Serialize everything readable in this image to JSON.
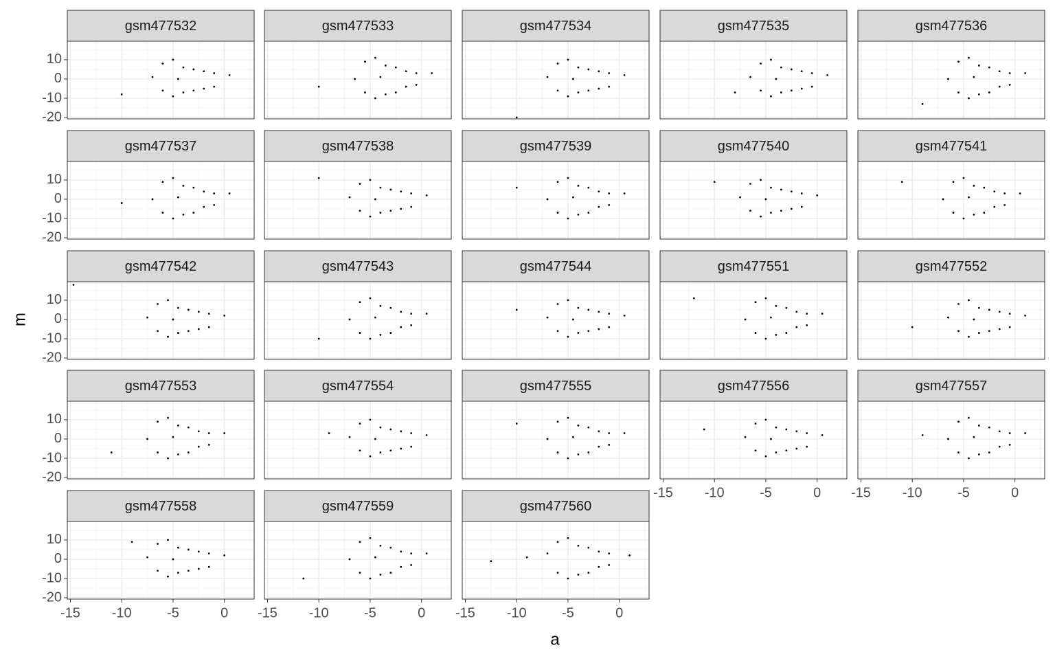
{
  "chart_data": {
    "type": "scatter",
    "xlabel": "a",
    "ylabel": "m",
    "color": "#000000",
    "xlim": [
      -15.3,
      2.9
    ],
    "ylim": [
      -20.7,
      19.6
    ],
    "xticks": [
      -15,
      -10,
      -5,
      0
    ],
    "yticks": [
      -20,
      -10,
      0,
      10
    ],
    "grid": true,
    "panels": [
      {
        "title": "gsm477532",
        "x": [
          -10,
          -7,
          -6,
          -6,
          -5,
          -5,
          -4.5,
          -4,
          -4,
          -3,
          -3,
          -2,
          -2,
          -1,
          -1,
          0.5
        ],
        "y": [
          -8,
          1,
          8,
          -6,
          10,
          -9,
          0,
          6,
          -7,
          5,
          -6,
          4,
          -5,
          3,
          -4,
          2
        ]
      },
      {
        "title": "gsm477533",
        "x": [
          -10,
          -6.5,
          -5.5,
          -5.5,
          -4.5,
          -4.5,
          -4,
          -3.5,
          -3.5,
          -2.5,
          -2.5,
          -1.5,
          -1.5,
          -0.5,
          -0.5,
          1
        ],
        "y": [
          -4,
          0,
          9,
          -7,
          11,
          -10,
          1,
          7,
          -8,
          6,
          -7,
          4,
          -4,
          3,
          -3,
          3
        ]
      },
      {
        "title": "gsm477534",
        "x": [
          -10,
          -7,
          -6,
          -6,
          -5,
          -5,
          -4.5,
          -4,
          -4,
          -3,
          -3,
          -2,
          -2,
          -1,
          -1,
          0.5
        ],
        "y": [
          -20,
          1,
          8,
          -6,
          10,
          -9,
          0,
          6,
          -7,
          5,
          -6,
          4,
          -5,
          3,
          -4,
          2
        ]
      },
      {
        "title": "gsm477535",
        "x": [
          -8,
          -6.5,
          -5.5,
          -5.5,
          -4.5,
          -4.5,
          -4,
          -3.5,
          -3.5,
          -2.5,
          -2.5,
          -1.5,
          -1.5,
          -0.5,
          -0.5,
          1
        ],
        "y": [
          -7,
          1,
          8,
          -6,
          10,
          -9,
          0,
          6,
          -7,
          5,
          -6,
          4,
          -5,
          3,
          -4,
          2
        ]
      },
      {
        "title": "gsm477536",
        "x": [
          -9,
          -6.5,
          -5.5,
          -5.5,
          -4.5,
          -4.5,
          -4,
          -3.5,
          -3.5,
          -2.5,
          -2.5,
          -1.5,
          -1.5,
          -0.5,
          -0.5,
          1
        ],
        "y": [
          -13,
          0,
          9,
          -7,
          11,
          -10,
          1,
          7,
          -8,
          6,
          -7,
          4,
          -4,
          3,
          -3,
          3
        ]
      },
      {
        "title": "gsm477537",
        "x": [
          -10,
          -7,
          -6,
          -6,
          -5,
          -5,
          -4.5,
          -4,
          -4,
          -3,
          -3,
          -2,
          -2,
          -1,
          -1,
          0.5
        ],
        "y": [
          -2,
          0,
          9,
          -7,
          11,
          -10,
          1,
          7,
          -8,
          6,
          -7,
          4,
          -4,
          3,
          -3,
          3
        ]
      },
      {
        "title": "gsm477538",
        "x": [
          -10,
          -7,
          -6,
          -6,
          -5,
          -5,
          -4.5,
          -4,
          -4,
          -3,
          -3,
          -2,
          -2,
          -1,
          -1,
          0.5
        ],
        "y": [
          11,
          1,
          8,
          -6,
          10,
          -9,
          0,
          6,
          -7,
          5,
          -6,
          4,
          -5,
          3,
          -4,
          2
        ]
      },
      {
        "title": "gsm477539",
        "x": [
          -10,
          -7,
          -6,
          -6,
          -5,
          -5,
          -4.5,
          -4,
          -4,
          -3,
          -3,
          -2,
          -2,
          -1,
          -1,
          0.5
        ],
        "y": [
          6,
          0,
          9,
          -7,
          11,
          -10,
          1,
          7,
          -8,
          6,
          -7,
          4,
          -4,
          3,
          -3,
          3
        ]
      },
      {
        "title": "gsm477540",
        "x": [
          -10,
          -7.5,
          -6.5,
          -6.5,
          -5.5,
          -5.5,
          -5,
          -4.5,
          -4.5,
          -3.5,
          -3.5,
          -2.5,
          -2.5,
          -1.5,
          -1.5,
          0
        ],
        "y": [
          9,
          1,
          8,
          -6,
          10,
          -9,
          0,
          6,
          -7,
          5,
          -6,
          4,
          -5,
          3,
          -4,
          2
        ]
      },
      {
        "title": "gsm477541",
        "x": [
          -11,
          -7,
          -6,
          -6,
          -5,
          -5,
          -4.5,
          -4,
          -4,
          -3,
          -3,
          -2,
          -2,
          -1,
          -1,
          0.5
        ],
        "y": [
          9,
          0,
          9,
          -7,
          11,
          -10,
          1,
          7,
          -8,
          6,
          -7,
          4,
          -4,
          3,
          -3,
          3
        ]
      },
      {
        "title": "gsm477542",
        "x": [
          -14.7,
          -7.5,
          -6.5,
          -6.5,
          -5.5,
          -5.5,
          -5,
          -4.5,
          -4.5,
          -3.5,
          -3.5,
          -2.5,
          -2.5,
          -1.5,
          -1.5,
          0
        ],
        "y": [
          18,
          1,
          8,
          -6,
          10,
          -9,
          0,
          6,
          -7,
          5,
          -6,
          4,
          -5,
          3,
          -4,
          2
        ]
      },
      {
        "title": "gsm477543",
        "x": [
          -10,
          -7,
          -6,
          -6,
          -5,
          -5,
          -4.5,
          -4,
          -4,
          -3,
          -3,
          -2,
          -2,
          -1,
          -1,
          0.5
        ],
        "y": [
          -10,
          0,
          9,
          -7,
          11,
          -10,
          1,
          7,
          -8,
          6,
          -7,
          4,
          -4,
          3,
          -3,
          3
        ]
      },
      {
        "title": "gsm477544",
        "x": [
          -10,
          -7,
          -6,
          -6,
          -5,
          -5,
          -4.5,
          -4,
          -4,
          -3,
          -3,
          -2,
          -2,
          -1,
          -1,
          0.5
        ],
        "y": [
          5,
          1,
          8,
          -6,
          10,
          -9,
          0,
          6,
          -7,
          5,
          -6,
          4,
          -5,
          3,
          -4,
          2
        ]
      },
      {
        "title": "gsm477551",
        "x": [
          -12,
          -7,
          -6,
          -6,
          -5,
          -5,
          -4.5,
          -4,
          -4,
          -3,
          -3,
          -2,
          -2,
          -1,
          -1,
          0.5
        ],
        "y": [
          11,
          0,
          9,
          -7,
          11,
          -10,
          1,
          7,
          -8,
          6,
          -7,
          4,
          -4,
          3,
          -3,
          3
        ]
      },
      {
        "title": "gsm477552",
        "x": [
          -10,
          -6.5,
          -5.5,
          -5.5,
          -4.5,
          -4.5,
          -4,
          -3.5,
          -3.5,
          -2.5,
          -2.5,
          -1.5,
          -1.5,
          -0.5,
          -0.5,
          1
        ],
        "y": [
          -4,
          1,
          8,
          -6,
          10,
          -9,
          0,
          6,
          -7,
          5,
          -6,
          4,
          -5,
          3,
          -4,
          2
        ]
      },
      {
        "title": "gsm477553",
        "x": [
          -11,
          -7.5,
          -6.5,
          -6.5,
          -5.5,
          -5.5,
          -5,
          -4.5,
          -4.5,
          -3.5,
          -3.5,
          -2.5,
          -2.5,
          -1.5,
          -1.5,
          0
        ],
        "y": [
          -7,
          0,
          9,
          -7,
          11,
          -10,
          1,
          7,
          -8,
          6,
          -7,
          4,
          -4,
          3,
          -3,
          3
        ]
      },
      {
        "title": "gsm477554",
        "x": [
          -9,
          -7,
          -6,
          -6,
          -5,
          -5,
          -4.5,
          -4,
          -4,
          -3,
          -3,
          -2,
          -2,
          -1,
          -1,
          0.5
        ],
        "y": [
          3,
          1,
          8,
          -6,
          10,
          -9,
          0,
          6,
          -7,
          5,
          -6,
          4,
          -5,
          3,
          -4,
          2
        ]
      },
      {
        "title": "gsm477555",
        "x": [
          -10,
          -7,
          -6,
          -6,
          -5,
          -5,
          -4.5,
          -4,
          -4,
          -3,
          -3,
          -2,
          -2,
          -1,
          -1,
          0.5
        ],
        "y": [
          8,
          0,
          9,
          -7,
          11,
          -10,
          1,
          7,
          -8,
          6,
          -7,
          4,
          -4,
          3,
          -3,
          3
        ]
      },
      {
        "title": "gsm477556",
        "x": [
          -11,
          -7,
          -6,
          -6,
          -5,
          -5,
          -4.5,
          -4,
          -4,
          -3,
          -3,
          -2,
          -2,
          -1,
          -1,
          0.5
        ],
        "y": [
          5,
          1,
          8,
          -6,
          10,
          -9,
          0,
          6,
          -7,
          5,
          -6,
          4,
          -5,
          3,
          -4,
          2
        ]
      },
      {
        "title": "gsm477557",
        "x": [
          -9,
          -6.5,
          -5.5,
          -5.5,
          -4.5,
          -4.5,
          -4,
          -3.5,
          -3.5,
          -2.5,
          -2.5,
          -1.5,
          -1.5,
          -0.5,
          -0.5,
          1
        ],
        "y": [
          2,
          0,
          9,
          -7,
          11,
          -10,
          1,
          7,
          -8,
          6,
          -7,
          4,
          -4,
          3,
          -3,
          3
        ]
      },
      {
        "title": "gsm477558",
        "x": [
          -9,
          -7.5,
          -6.5,
          -6.5,
          -5.5,
          -5.5,
          -5,
          -4.5,
          -4.5,
          -3.5,
          -3.5,
          -2.5,
          -2.5,
          -1.5,
          -1.5,
          0
        ],
        "y": [
          9,
          1,
          8,
          -6,
          10,
          -9,
          0,
          6,
          -7,
          5,
          -6,
          4,
          -5,
          3,
          -4,
          2
        ]
      },
      {
        "title": "gsm477559",
        "x": [
          -11.5,
          -7,
          -6,
          -6,
          -5,
          -5,
          -4.5,
          -4,
          -4,
          -3,
          -3,
          -2,
          -2,
          -1,
          -1,
          0.5
        ],
        "y": [
          -10,
          0,
          9,
          -7,
          11,
          -10,
          1,
          7,
          -8,
          6,
          -7,
          4,
          -4,
          3,
          -3,
          3
        ]
      },
      {
        "title": "gsm477560",
        "x": [
          -12.5,
          -9,
          -7,
          -6,
          -6,
          -5,
          -5,
          -4,
          -4,
          -3,
          -3,
          -2,
          -2,
          -1,
          -1,
          1
        ],
        "y": [
          -1,
          1,
          3,
          9,
          -7,
          11,
          -10,
          7,
          -8,
          6,
          -7,
          4,
          -4,
          3,
          -3,
          2
        ]
      }
    ]
  }
}
